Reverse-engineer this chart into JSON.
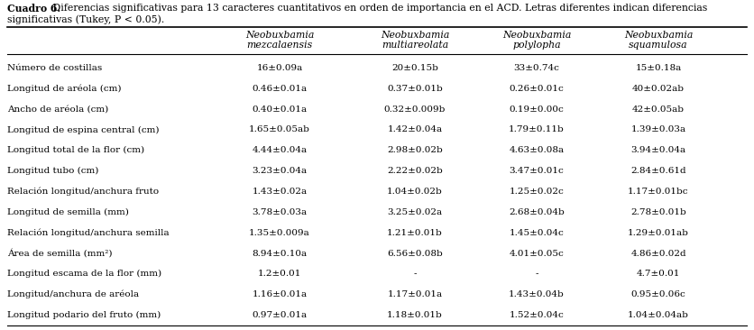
{
  "title_bold": "Cuadro 6.",
  "title_rest": " Diferencias significativas para 13 caracteres cuantitativos en orden de importancia en el ACD. Letras diferentes indican diferencias significativas (Tukey, P < 0.05).",
  "col_headers": [
    [
      "Neobuxbamia",
      "mezcalaensis"
    ],
    [
      "Neobuxbamia",
      "multiareolata"
    ],
    [
      "Neobuxbamia",
      "polylopha"
    ],
    [
      "Neobuxbamia",
      "squamulosa"
    ]
  ],
  "rows": [
    {
      "label": "Número de costillas",
      "values": [
        "16±0.09a",
        "20±0.15b",
        "33±0.74c",
        "15±0.18a"
      ]
    },
    {
      "label": "Longitud de aréola (cm)",
      "values": [
        "0.46±0.01a",
        "0.37±0.01b",
        "0.26±0.01c",
        "40±0.02ab"
      ]
    },
    {
      "label": "Ancho de aréola (cm)",
      "values": [
        "0.40±0.01a",
        "0.32±0.009b",
        "0.19±0.00c",
        "42±0.05ab"
      ]
    },
    {
      "label": "Longitud de espina central (cm)",
      "values": [
        "1.65±0.05ab",
        "1.42±0.04a",
        "1.79±0.11b",
        "1.39±0.03a"
      ]
    },
    {
      "label": "Longitud total de la flor (cm)",
      "values": [
        "4.44±0.04a",
        "2.98±0.02b",
        "4.63±0.08a",
        "3.94±0.04a"
      ]
    },
    {
      "label": "Longitud tubo (cm)",
      "values": [
        "3.23±0.04a",
        "2.22±0.02b",
        "3.47±0.01c",
        "2.84±0.61d"
      ]
    },
    {
      "label": "Relación longitud/anchura fruto",
      "values": [
        "1.43±0.02a",
        "1.04±0.02b",
        "1.25±0.02c",
        "1.17±0.01bc"
      ]
    },
    {
      "label": "Longitud de semilla (mm)",
      "values": [
        "3.78±0.03a",
        "3.25±0.02a",
        "2.68±0.04b",
        "2.78±0.01b"
      ]
    },
    {
      "label": "Relación longitud/anchura semilla",
      "values": [
        "1.35±0.009a",
        "1.21±0.01b",
        "1.45±0.04c",
        "1.29±0.01ab"
      ]
    },
    {
      "label": "Área de semilla (mm²)",
      "values": [
        "8.94±0.10a",
        "6.56±0.08b",
        "4.01±0.05c",
        "4.86±0.02d"
      ]
    },
    {
      "label": "Longitud escama de la flor (mm)",
      "values": [
        "1.2±0.01",
        "-",
        "-",
        "4.7±0.01"
      ]
    },
    {
      "label": "Longitud/anchura de aréola",
      "values": [
        "1.16±0.01a",
        "1.17±0.01a",
        "1.43±0.04b",
        "0.95±0.06c"
      ]
    },
    {
      "label": "Longitud podario del fruto (mm)",
      "values": [
        "0.97±0.01a",
        "1.18±0.01b",
        "1.52±0.04c",
        "1.04±0.04ab"
      ]
    }
  ],
  "background_color": "#ffffff",
  "text_color": "#000000",
  "font_size": 7.5,
  "header_font_size": 7.8,
  "title_font_size": 7.8
}
